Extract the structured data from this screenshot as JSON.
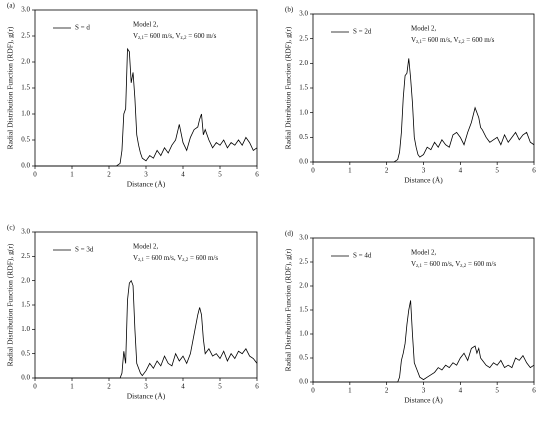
{
  "chart_data": [
    {
      "type": "line",
      "panel_label": "(a)",
      "model": "Model 2,",
      "velocity": [
        "V",
        "z,1",
        "= 600 m/s,  V",
        "z,2",
        " = 600 m/s"
      ],
      "x_label": "Distance (Å)",
      "y_label": "Radial Distribution Function (RDF), g(r)",
      "x": [
        0,
        2.2,
        2.3,
        2.35,
        2.4,
        2.45,
        2.5,
        2.55,
        2.6,
        2.65,
        2.7,
        2.75,
        2.8,
        2.85,
        2.9,
        3.0,
        3.1,
        3.2,
        3.3,
        3.4,
        3.5,
        3.6,
        3.7,
        3.8,
        3.9,
        4.0,
        4.1,
        4.2,
        4.3,
        4.4,
        4.45,
        4.5,
        4.55,
        4.6,
        4.7,
        4.8,
        4.9,
        5.0,
        5.1,
        5.2,
        5.3,
        5.4,
        5.5,
        5.6,
        5.7,
        5.8,
        5.9,
        6.0
      ],
      "series": [
        {
          "name": "S = d",
          "color": "#000000",
          "values": [
            0,
            0,
            0.05,
            0.3,
            1.0,
            1.1,
            2.25,
            2.2,
            1.6,
            1.8,
            1.3,
            0.6,
            0.4,
            0.25,
            0.15,
            0.1,
            0.2,
            0.15,
            0.3,
            0.2,
            0.35,
            0.25,
            0.4,
            0.5,
            0.8,
            0.45,
            0.3,
            0.55,
            0.7,
            0.75,
            0.9,
            1.0,
            0.6,
            0.7,
            0.5,
            0.35,
            0.45,
            0.4,
            0.5,
            0.35,
            0.45,
            0.4,
            0.5,
            0.4,
            0.55,
            0.45,
            0.3,
            0.35
          ]
        }
      ],
      "xlim": [
        0,
        6
      ],
      "ylim": [
        0,
        3
      ],
      "xticks": [
        0,
        1,
        2,
        3,
        4,
        5,
        6
      ],
      "yticks": [
        {
          "value": 0,
          "label": "0.0"
        },
        0.5,
        {
          "value": 1,
          "label": "1.0"
        },
        1.5,
        {
          "value": 2,
          "label": "2.0"
        },
        2.5,
        {
          "value": 3,
          "label": "3.0"
        }
      ]
    },
    {
      "type": "line",
      "panel_label": "(b)",
      "model": "Model 2,",
      "velocity": [
        "V",
        "z,1",
        "= 600 m/s,  V",
        "z,2",
        " = 600 m/s"
      ],
      "x_label": "Distance (Å)",
      "y_label": "Radial Distribution Function (RDF), g(r)",
      "x": [
        0,
        2.2,
        2.3,
        2.35,
        2.4,
        2.45,
        2.5,
        2.55,
        2.6,
        2.65,
        2.7,
        2.75,
        2.8,
        2.85,
        2.9,
        3.0,
        3.1,
        3.2,
        3.3,
        3.4,
        3.5,
        3.6,
        3.7,
        3.8,
        3.9,
        4.0,
        4.1,
        4.2,
        4.3,
        4.4,
        4.45,
        4.5,
        4.55,
        4.6,
        4.7,
        4.8,
        4.9,
        5.0,
        5.1,
        5.2,
        5.3,
        5.4,
        5.5,
        5.6,
        5.7,
        5.8,
        5.9,
        6.0
      ],
      "series": [
        {
          "name": "S = 2d",
          "color": "#000000",
          "values": [
            0,
            0,
            0.05,
            0.2,
            0.6,
            1.3,
            1.75,
            1.8,
            2.1,
            1.7,
            1.2,
            0.5,
            0.3,
            0.15,
            0.1,
            0.15,
            0.3,
            0.25,
            0.4,
            0.3,
            0.45,
            0.35,
            0.3,
            0.55,
            0.6,
            0.5,
            0.35,
            0.6,
            0.8,
            1.1,
            1.0,
            0.9,
            0.7,
            0.65,
            0.5,
            0.4,
            0.45,
            0.5,
            0.35,
            0.55,
            0.4,
            0.5,
            0.6,
            0.45,
            0.55,
            0.6,
            0.4,
            0.35
          ]
        }
      ],
      "xlim": [
        0,
        6
      ],
      "ylim": [
        0,
        3
      ],
      "xticks": [
        0,
        1,
        2,
        3,
        4,
        5,
        6
      ],
      "yticks": [
        {
          "value": 0,
          "label": "0.0"
        },
        0.5,
        {
          "value": 1,
          "label": "1.0"
        },
        1.5,
        {
          "value": 2,
          "label": "2.0"
        },
        2.5,
        {
          "value": 3,
          "label": "3.0"
        }
      ]
    },
    {
      "type": "line",
      "panel_label": "(c)",
      "model": "Model 2,",
      "velocity": [
        "V",
        "z,1",
        " = 600 m/s,  V",
        "z,2",
        " = 600 m/s"
      ],
      "x_label": "Distance (Å)",
      "y_label": "Radial Distribution Function (RDF), g(r)",
      "x": [
        0,
        2.2,
        2.3,
        2.35,
        2.4,
        2.45,
        2.5,
        2.55,
        2.6,
        2.65,
        2.7,
        2.75,
        2.8,
        2.85,
        2.9,
        3.0,
        3.1,
        3.2,
        3.3,
        3.4,
        3.5,
        3.6,
        3.7,
        3.8,
        3.9,
        4.0,
        4.1,
        4.2,
        4.3,
        4.4,
        4.45,
        4.5,
        4.55,
        4.6,
        4.7,
        4.8,
        4.9,
        5.0,
        5.1,
        5.2,
        5.3,
        5.4,
        5.5,
        5.6,
        5.7,
        5.8,
        5.9,
        6.0
      ],
      "series": [
        {
          "name": "S = 3d",
          "color": "#000000",
          "values": [
            0,
            0,
            0,
            0.1,
            0.55,
            0.3,
            1.6,
            1.95,
            2.0,
            1.9,
            1.0,
            0.3,
            0.2,
            0.1,
            0.05,
            0.15,
            0.3,
            0.2,
            0.35,
            0.25,
            0.45,
            0.3,
            0.25,
            0.5,
            0.35,
            0.45,
            0.3,
            0.5,
            0.9,
            1.3,
            1.45,
            1.3,
            0.8,
            0.5,
            0.6,
            0.45,
            0.5,
            0.4,
            0.55,
            0.35,
            0.5,
            0.4,
            0.55,
            0.5,
            0.6,
            0.45,
            0.4,
            0.3
          ]
        }
      ],
      "xlim": [
        0,
        6
      ],
      "ylim": [
        0,
        3
      ],
      "xticks": [
        0,
        1,
        2,
        3,
        4,
        5,
        6
      ],
      "yticks": [
        {
          "value": 0,
          "label": "0.0"
        },
        0.5,
        {
          "value": 1,
          "label": "1.0"
        },
        1.5,
        {
          "value": 2,
          "label": "2.0"
        },
        2.5,
        {
          "value": 3,
          "label": "3.0"
        }
      ]
    },
    {
      "type": "line",
      "panel_label": "(d)",
      "model": "Model 2,",
      "velocity": [
        "V",
        "z,1",
        " = 600 m/s,  V",
        "z,2",
        " = 600 m/s"
      ],
      "x_label": "Distance (Å)",
      "y_label": "Radial Distribution Function (RDF), g(r)",
      "x": [
        0,
        2.2,
        2.3,
        2.35,
        2.4,
        2.45,
        2.5,
        2.55,
        2.6,
        2.65,
        2.7,
        2.75,
        2.8,
        2.85,
        2.9,
        3.0,
        3.1,
        3.2,
        3.3,
        3.4,
        3.5,
        3.6,
        3.7,
        3.8,
        3.9,
        4.0,
        4.1,
        4.2,
        4.3,
        4.4,
        4.45,
        4.5,
        4.55,
        4.6,
        4.7,
        4.8,
        4.9,
        5.0,
        5.1,
        5.2,
        5.3,
        5.4,
        5.5,
        5.6,
        5.7,
        5.8,
        5.9,
        6.0
      ],
      "series": [
        {
          "name": "S = 4d",
          "color": "#000000",
          "values": [
            0,
            0,
            0,
            0.1,
            0.45,
            0.6,
            0.8,
            1.2,
            1.5,
            1.7,
            1.0,
            0.4,
            0.3,
            0.2,
            0.1,
            0.05,
            0.1,
            0.15,
            0.2,
            0.3,
            0.25,
            0.35,
            0.3,
            0.4,
            0.35,
            0.5,
            0.6,
            0.45,
            0.7,
            0.75,
            0.6,
            0.7,
            0.5,
            0.45,
            0.35,
            0.3,
            0.4,
            0.35,
            0.45,
            0.3,
            0.35,
            0.3,
            0.5,
            0.45,
            0.55,
            0.4,
            0.3,
            0.35
          ]
        }
      ],
      "xlim": [
        0,
        6
      ],
      "ylim": [
        0,
        3
      ],
      "xticks": [
        0,
        1,
        2,
        3,
        4,
        5,
        6
      ],
      "yticks": [
        {
          "value": 0,
          "label": "0.0"
        },
        0.5,
        {
          "value": 1,
          "label": "1.0"
        },
        1.5,
        {
          "value": 2,
          "label": "2.0"
        },
        2.5,
        {
          "value": 3,
          "label": "3.0"
        }
      ]
    }
  ]
}
